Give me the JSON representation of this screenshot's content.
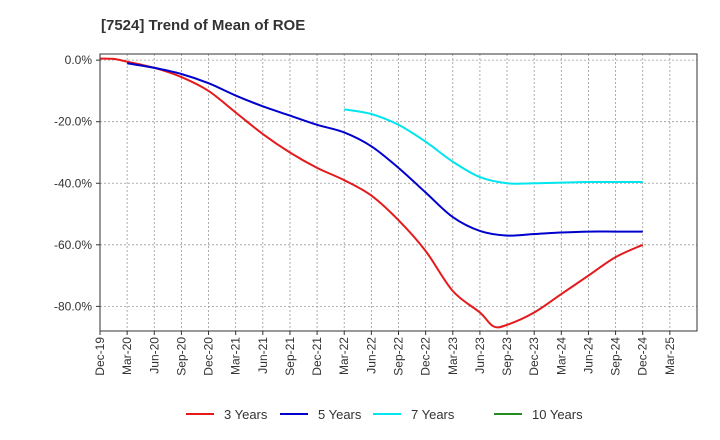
{
  "chart_data": {
    "type": "line",
    "title": "[7524]  Trend of Mean of ROE",
    "xlabel": "",
    "ylabel": "",
    "ylim": [
      -88,
      2
    ],
    "yticks": [
      0,
      -20,
      -40,
      -60,
      -80
    ],
    "ytick_labels": [
      "0.0%",
      "-20.0%",
      "-40.0%",
      "-60.0%",
      "-80.0%"
    ],
    "x_range": [
      0,
      22
    ],
    "xtick_labels": [
      "Dec-19",
      "Mar-20",
      "Jun-20",
      "Sep-20",
      "Dec-20",
      "Mar-21",
      "Jun-21",
      "Sep-21",
      "Dec-21",
      "Mar-22",
      "Jun-22",
      "Sep-22",
      "Dec-22",
      "Mar-23",
      "Jun-23",
      "Sep-23",
      "Dec-23",
      "Mar-24",
      "Jun-24",
      "Sep-24",
      "Dec-24",
      "Mar-25"
    ],
    "grid": true,
    "legend_position": "bottom",
    "series": [
      {
        "name": "3 Years",
        "color": "#e41a1c",
        "points": [
          [
            0,
            0.5
          ],
          [
            0.5,
            0.4
          ],
          [
            1,
            -0.5
          ],
          [
            2,
            -2.5
          ],
          [
            3,
            -5.5
          ],
          [
            4,
            -10
          ],
          [
            5,
            -17
          ],
          [
            6,
            -24
          ],
          [
            7,
            -30
          ],
          [
            8,
            -35
          ],
          [
            9,
            -39
          ],
          [
            10,
            -44
          ],
          [
            11,
            -52
          ],
          [
            12,
            -62
          ],
          [
            13,
            -75
          ],
          [
            14,
            -82
          ],
          [
            14.5,
            -86.5
          ],
          [
            15,
            -86
          ],
          [
            16,
            -82
          ],
          [
            17,
            -76
          ],
          [
            18,
            -70
          ],
          [
            19,
            -64
          ],
          [
            20,
            -60
          ]
        ]
      },
      {
        "name": "5 Years",
        "color": "#0000cd",
        "points": [
          [
            1,
            -1
          ],
          [
            2,
            -2.5
          ],
          [
            3,
            -4.5
          ],
          [
            4,
            -7.5
          ],
          [
            5,
            -11.5
          ],
          [
            6,
            -15
          ],
          [
            7,
            -18
          ],
          [
            8,
            -21
          ],
          [
            9,
            -23.5
          ],
          [
            10,
            -28
          ],
          [
            11,
            -35
          ],
          [
            12,
            -43
          ],
          [
            13,
            -51
          ],
          [
            14,
            -55.5
          ],
          [
            15,
            -57
          ],
          [
            16,
            -56.5
          ],
          [
            17,
            -56
          ],
          [
            18,
            -55.7
          ],
          [
            19,
            -55.7
          ],
          [
            20,
            -55.7
          ]
        ]
      },
      {
        "name": "7 Years",
        "color": "#00e5ee",
        "points": [
          [
            9,
            -16
          ],
          [
            10,
            -17.5
          ],
          [
            11,
            -21
          ],
          [
            12,
            -26.5
          ],
          [
            13,
            -33
          ],
          [
            14,
            -38
          ],
          [
            15,
            -40
          ],
          [
            16,
            -40
          ],
          [
            17,
            -39.8
          ],
          [
            18,
            -39.6
          ],
          [
            19,
            -39.6
          ],
          [
            20,
            -39.6
          ]
        ]
      },
      {
        "name": "10 Years",
        "color": "#228b22",
        "points": []
      }
    ]
  }
}
